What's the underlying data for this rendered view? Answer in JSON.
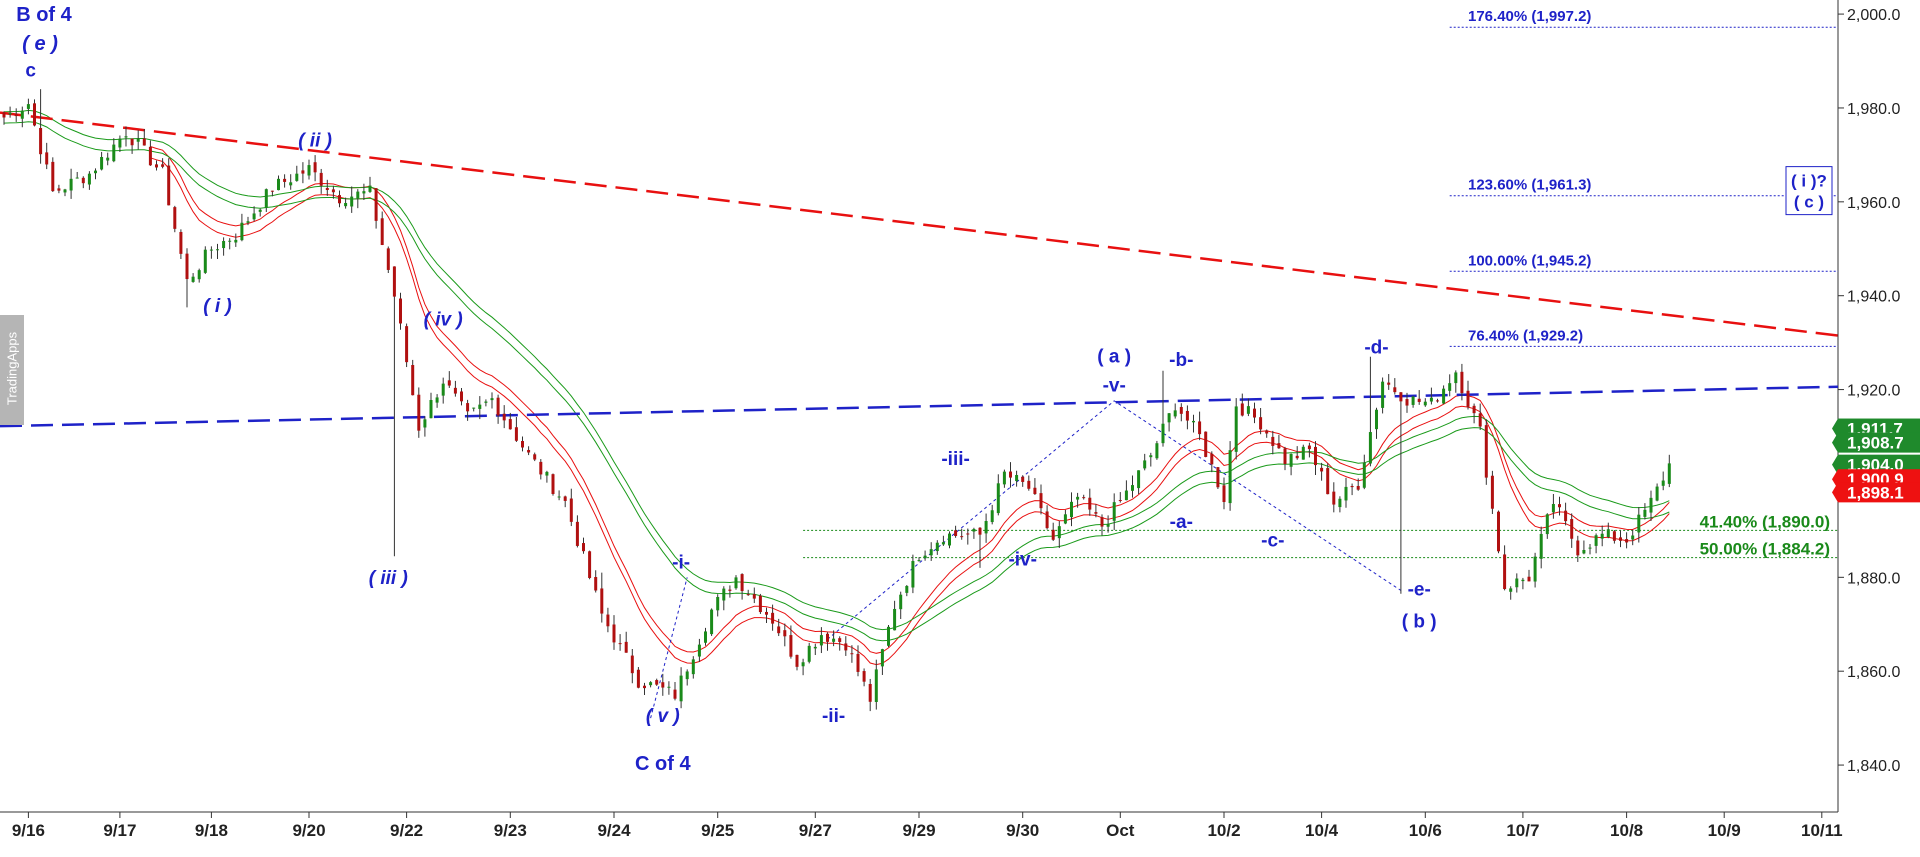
{
  "watermark": "TradingApps",
  "chart_data": {
    "type": "candlestick",
    "ylim": [
      1830,
      2003
    ],
    "y_ticks": [
      2000,
      1980,
      1960,
      1940,
      1920,
      1900,
      1880,
      1860,
      1840
    ],
    "y_tick_labels": [
      "2,000.0",
      "1,980.0",
      "1,960.0",
      "1,940.0",
      "1,920.0",
      "1,900.0",
      "1,880.0",
      "1,860.0",
      "1,840.0"
    ],
    "x_tick_labels": [
      "9/16",
      "9/17",
      "9/18",
      "9/20",
      "9/22",
      "9/23",
      "9/24",
      "9/25",
      "9/27",
      "9/29",
      "9/30",
      "Oct",
      "10/2",
      "10/4",
      "10/6",
      "10/7",
      "10/8",
      "10/9",
      "10/11"
    ],
    "x_tick_index": [
      4,
      19,
      34,
      50,
      66,
      83,
      100,
      117,
      133,
      150,
      167,
      183,
      200,
      216,
      233,
      249,
      266,
      282,
      298
    ],
    "anchors": [
      [
        0,
        1978
      ],
      [
        4,
        1981
      ],
      [
        8,
        1962
      ],
      [
        14,
        1966
      ],
      [
        20,
        1975
      ],
      [
        26,
        1966
      ],
      [
        30,
        1943
      ],
      [
        34,
        1950
      ],
      [
        38,
        1953
      ],
      [
        44,
        1963
      ],
      [
        50,
        1967
      ],
      [
        55,
        1961
      ],
      [
        60,
        1962
      ],
      [
        64,
        1940
      ],
      [
        68,
        1912
      ],
      [
        72,
        1922
      ],
      [
        76,
        1914
      ],
      [
        80,
        1918
      ],
      [
        86,
        1906
      ],
      [
        92,
        1896
      ],
      [
        98,
        1872
      ],
      [
        104,
        1858
      ],
      [
        110,
        1855
      ],
      [
        116,
        1873
      ],
      [
        120,
        1880
      ],
      [
        126,
        1871
      ],
      [
        130,
        1862
      ],
      [
        134,
        1868
      ],
      [
        138,
        1866
      ],
      [
        142,
        1854
      ],
      [
        146,
        1874
      ],
      [
        150,
        1885
      ],
      [
        154,
        1889
      ],
      [
        160,
        1889
      ],
      [
        164,
        1902
      ],
      [
        168,
        1899
      ],
      [
        172,
        1888
      ],
      [
        176,
        1897
      ],
      [
        180,
        1891
      ],
      [
        184,
        1898
      ],
      [
        188,
        1906
      ],
      [
        192,
        1917
      ],
      [
        196,
        1910
      ],
      [
        200,
        1897
      ],
      [
        202,
        1917
      ],
      [
        206,
        1913
      ],
      [
        210,
        1905
      ],
      [
        214,
        1907
      ],
      [
        218,
        1896
      ],
      [
        222,
        1900
      ],
      [
        226,
        1922
      ],
      [
        230,
        1918
      ],
      [
        234,
        1917
      ],
      [
        238,
        1924
      ],
      [
        242,
        1911
      ],
      [
        246,
        1878
      ],
      [
        250,
        1880
      ],
      [
        254,
        1896
      ],
      [
        258,
        1886
      ],
      [
        262,
        1889
      ],
      [
        266,
        1888
      ],
      [
        268,
        1892
      ],
      [
        270,
        1896
      ],
      [
        273,
        1904
      ]
    ],
    "fib_levels": [
      {
        "label": "176.40% (1,997.2)",
        "value": 1997.2,
        "color": "#1e22c8"
      },
      {
        "label": "123.60% (1,961.3)",
        "value": 1961.3,
        "color": "#1e22c8"
      },
      {
        "label": "100.00% (1,945.2)",
        "value": 1945.2,
        "color": "#1e22c8"
      },
      {
        "label": "76.40% (1,929.2)",
        "value": 1929.2,
        "color": "#1e22c8"
      },
      {
        "label": "41.40% (1,890.0)",
        "value": 1890.0,
        "color": "#1a8a1a"
      },
      {
        "label": "50.00% (1,884.2)",
        "value": 1884.2,
        "color": "#1a8a1a"
      }
    ],
    "trend_lines": [
      {
        "color": "#e81010",
        "from": [
          0,
          1979.0
        ],
        "to": [
          299,
          1931.5
        ]
      },
      {
        "color": "#1e22c8",
        "from": [
          0,
          1912.2
        ],
        "to": [
          299,
          1920.6
        ]
      }
    ],
    "price_tags": [
      {
        "label": "1,911.7",
        "value": 1911.7,
        "color": "#1f8a2c"
      },
      {
        "label": "1,908.7",
        "value": 1908.7,
        "color": "#1f8a2c"
      },
      {
        "label": "1,904.0",
        "value": 1904.0,
        "color": "#1f8a2c"
      },
      {
        "label": "1,900.9",
        "value": 1900.9,
        "color": "#ee1111"
      },
      {
        "label": "1,898.1",
        "value": 1898.1,
        "color": "#ee1111"
      }
    ],
    "wave_labels": [
      {
        "text": "B of 4",
        "i": 2,
        "v": 1998.5,
        "color": "#1e22c8",
        "style": "normal"
      },
      {
        "text": "( e )",
        "i": 3,
        "v": 1992.3,
        "color": "#1e22c8",
        "style": "italic"
      },
      {
        "text": "c",
        "i": 3.5,
        "v": 1986.7,
        "color": "#1e22c8",
        "style": "normal"
      },
      {
        "text": "( ii )",
        "i": 51,
        "v": 1971.8,
        "color": "#1e22c8",
        "style": "italic"
      },
      {
        "text": "( i )",
        "i": 35,
        "v": 1936.5,
        "color": "#1e22c8",
        "style": "italic"
      },
      {
        "text": "( iv )",
        "i": 72,
        "v": 1933.6,
        "color": "#1e22c8",
        "style": "italic"
      },
      {
        "text": "( iii )",
        "i": 63,
        "v": 1878.6,
        "color": "#1e22c8",
        "style": "italic"
      },
      {
        "text": "( v )",
        "i": 108,
        "v": 1849.2,
        "color": "#1e22c8",
        "style": "italic"
      },
      {
        "text": "C of 4",
        "i": 108,
        "v": 1838.9,
        "color": "#1e22c8",
        "style": "normal"
      },
      {
        "text": "-i-",
        "i": 111,
        "v": 1881.9,
        "color": "#1e22c8",
        "style": "normal"
      },
      {
        "text": "-ii-",
        "i": 136,
        "v": 1849.2,
        "color": "#1e22c8",
        "style": "normal"
      },
      {
        "text": "-iii-",
        "i": 156,
        "v": 1903.9,
        "color": "#1e22c8",
        "style": "normal"
      },
      {
        "text": "-iv-",
        "i": 167,
        "v": 1882.5,
        "color": "#1e22c8",
        "style": "normal"
      },
      {
        "text": "( a )",
        "i": 182,
        "v": 1925.8,
        "color": "#1e22c8",
        "style": "normal"
      },
      {
        "text": "-v-",
        "i": 182,
        "v": 1919.6,
        "color": "#1e22c8",
        "style": "normal"
      },
      {
        "text": "-b-",
        "i": 193,
        "v": 1925.0,
        "color": "#1e22c8",
        "style": "normal"
      },
      {
        "text": "-a-",
        "i": 193,
        "v": 1890.5,
        "color": "#1e22c8",
        "style": "normal"
      },
      {
        "text": "-c-",
        "i": 208,
        "v": 1886.6,
        "color": "#1e22c8",
        "style": "normal"
      },
      {
        "text": "-d-",
        "i": 225,
        "v": 1927.7,
        "color": "#1e22c8",
        "style": "normal"
      },
      {
        "text": "-e-",
        "i": 232,
        "v": 1876.1,
        "color": "#1e22c8",
        "style": "normal"
      },
      {
        "text": "( b )",
        "i": 232,
        "v": 1869.3,
        "color": "#1e22c8",
        "style": "normal"
      }
    ],
    "boxed_label": {
      "lines": [
        "( i )?",
        "( c )"
      ],
      "color": "#1e22c8"
    },
    "wave_paths": [
      [
        [
          106,
          1850.0
        ],
        [
          112,
          1880.0
        ]
      ],
      [
        [
          135,
          1866.8
        ],
        [
          182,
          1917.6
        ],
        [
          229,
          1877.2
        ]
      ]
    ]
  }
}
